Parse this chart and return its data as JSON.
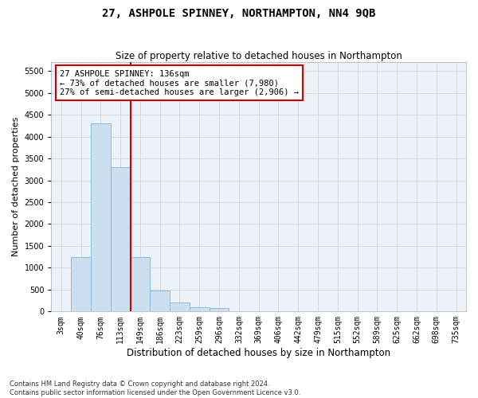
{
  "title": "27, ASHPOLE SPINNEY, NORTHAMPTON, NN4 9QB",
  "subtitle": "Size of property relative to detached houses in Northampton",
  "xlabel": "Distribution of detached houses by size in Northampton",
  "ylabel": "Number of detached properties",
  "categories": [
    "3sqm",
    "40sqm",
    "76sqm",
    "113sqm",
    "149sqm",
    "186sqm",
    "223sqm",
    "259sqm",
    "296sqm",
    "332sqm",
    "369sqm",
    "406sqm",
    "442sqm",
    "479sqm",
    "515sqm",
    "552sqm",
    "589sqm",
    "625sqm",
    "662sqm",
    "698sqm",
    "735sqm"
  ],
  "bar_heights": [
    0,
    1250,
    4300,
    3300,
    1250,
    480,
    200,
    100,
    70,
    0,
    0,
    0,
    0,
    0,
    0,
    0,
    0,
    0,
    0,
    0,
    0
  ],
  "bar_color": "#ccdff0",
  "bar_edge_color": "#7ab8d9",
  "grid_color": "#c8d0dc",
  "background_color": "#ffffff",
  "plot_bg_color": "#edf2f9",
  "vline_color": "#cc0000",
  "vline_pos": 3.5,
  "annotation_text": "27 ASHPOLE SPINNEY: 136sqm\n← 73% of detached houses are smaller (7,980)\n27% of semi-detached houses are larger (2,906) →",
  "annotation_box_color": "#ffffff",
  "annotation_box_edge": "#cc0000",
  "footer_line1": "Contains HM Land Registry data © Crown copyright and database right 2024.",
  "footer_line2": "Contains public sector information licensed under the Open Government Licence v3.0.",
  "ylim": [
    0,
    5700
  ],
  "yticks": [
    0,
    500,
    1000,
    1500,
    2000,
    2500,
    3000,
    3500,
    4000,
    4500,
    5000,
    5500
  ],
  "title_fontsize": 10,
  "subtitle_fontsize": 8.5,
  "tick_fontsize": 7,
  "ylabel_fontsize": 8,
  "xlabel_fontsize": 8.5,
  "ann_fontsize": 7.5
}
